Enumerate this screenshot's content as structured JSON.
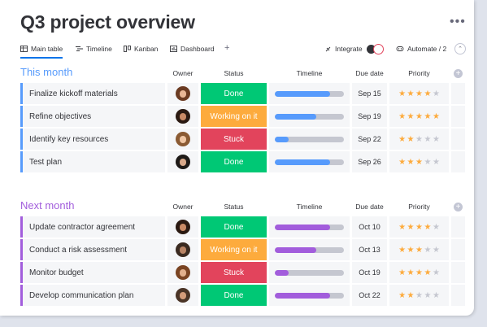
{
  "board": {
    "title": "Q3 project overview",
    "more": "•••"
  },
  "toolbar": {
    "tabs": [
      {
        "label": "Main table",
        "icon": "table-icon",
        "active": true
      },
      {
        "label": "Timeline",
        "icon": "timeline-icon",
        "active": false
      },
      {
        "label": "Kanban",
        "icon": "kanban-icon",
        "active": false
      },
      {
        "label": "Dashboard",
        "icon": "dashboard-icon",
        "active": false
      }
    ],
    "add_tab": "+",
    "integrate": "Integrate",
    "automate": "Automate / 2",
    "collapse": "⌃"
  },
  "columns": {
    "owner": "Owner",
    "status": "Status",
    "timeline": "Timeline",
    "due": "Due date",
    "priority": "Priority"
  },
  "colors": {
    "done": "#00c875",
    "working": "#fdab3d",
    "stuck": "#e2445c",
    "this_month": "#579bfc",
    "next_month": "#a25ddc"
  },
  "groups": [
    {
      "title": "This month",
      "color": "#579bfc",
      "rows": [
        {
          "name": "Finalize kickoff materials",
          "status": "Done",
          "status_key": "done",
          "progress": 0.8,
          "due": "Sep 15",
          "stars": 4,
          "owner": "woman-1"
        },
        {
          "name": "Refine objectives",
          "status": "Working on it",
          "status_key": "working",
          "progress": 0.6,
          "due": "Sep 19",
          "stars": 5,
          "owner": "woman-2"
        },
        {
          "name": "Identify key resources",
          "status": "Stuck",
          "status_key": "stuck",
          "progress": 0.2,
          "due": "Sep 22",
          "stars": 2,
          "owner": "woman-3"
        },
        {
          "name": "Test plan",
          "status": "Done",
          "status_key": "done",
          "progress": 0.8,
          "due": "Sep 26",
          "stars": 3,
          "owner": "man-1"
        }
      ]
    },
    {
      "title": "Next month",
      "color": "#a25ddc",
      "rows": [
        {
          "name": "Update contractor agreement",
          "status": "Done",
          "status_key": "done",
          "progress": 0.8,
          "due": "Oct 10",
          "stars": 4,
          "owner": "woman-2"
        },
        {
          "name": "Conduct a risk assessment",
          "status": "Working on it",
          "status_key": "working",
          "progress": 0.6,
          "due": "Oct 13",
          "stars": 3,
          "owner": "man-2"
        },
        {
          "name": "Monitor budget",
          "status": "Stuck",
          "status_key": "stuck",
          "progress": 0.2,
          "due": "Oct 19",
          "stars": 4,
          "owner": "man-3"
        },
        {
          "name": "Develop communication plan",
          "status": "Done",
          "status_key": "done",
          "progress": 0.8,
          "due": "Oct 22",
          "stars": 2,
          "owner": "man-4"
        }
      ]
    }
  ]
}
